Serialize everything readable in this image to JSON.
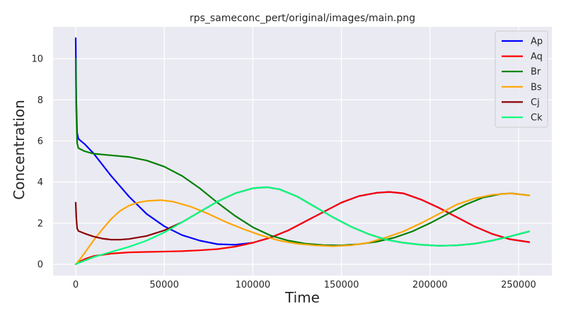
{
  "chart_data": {
    "type": "line",
    "title": "rps_sameconc_pert/original/images/main.png",
    "xlabel": "Time",
    "ylabel": "Concentration",
    "xlim": [
      -12800,
      268800
    ],
    "ylim": [
      -0.55,
      11.55
    ],
    "xticks": [
      0,
      50000,
      100000,
      150000,
      200000,
      250000
    ],
    "xtick_labels": [
      "0",
      "50000",
      "100000",
      "150000",
      "200000",
      "250000"
    ],
    "yticks": [
      0,
      2,
      4,
      6,
      8,
      10
    ],
    "ytick_labels": [
      "0",
      "2",
      "4",
      "6",
      "8",
      "10"
    ],
    "grid": true,
    "legend_position": "top-right",
    "series": [
      {
        "name": "Ap",
        "color": "#0000ff",
        "points": [
          [
            0,
            11.0
          ],
          [
            300,
            8.0
          ],
          [
            800,
            6.4
          ],
          [
            1500,
            6.1
          ],
          [
            5000,
            5.85
          ],
          [
            10000,
            5.4
          ],
          [
            20000,
            4.3
          ],
          [
            30000,
            3.3
          ],
          [
            40000,
            2.45
          ],
          [
            50000,
            1.85
          ],
          [
            60000,
            1.42
          ],
          [
            70000,
            1.15
          ],
          [
            80000,
            0.98
          ],
          [
            90000,
            0.95
          ],
          [
            100000,
            1.05
          ],
          [
            110000,
            1.3
          ],
          [
            120000,
            1.65
          ],
          [
            130000,
            2.1
          ],
          [
            140000,
            2.55
          ],
          [
            150000,
            3.0
          ],
          [
            160000,
            3.32
          ],
          [
            170000,
            3.48
          ],
          [
            177000,
            3.52
          ],
          [
            185000,
            3.45
          ],
          [
            195000,
            3.15
          ],
          [
            205000,
            2.75
          ],
          [
            215000,
            2.3
          ],
          [
            225000,
            1.85
          ],
          [
            235000,
            1.48
          ],
          [
            245000,
            1.22
          ],
          [
            256000,
            1.08
          ]
        ]
      },
      {
        "name": "Aq",
        "color": "#ff0000",
        "points": [
          [
            0,
            0.0
          ],
          [
            2000,
            0.12
          ],
          [
            5000,
            0.25
          ],
          [
            10000,
            0.4
          ],
          [
            20000,
            0.52
          ],
          [
            30000,
            0.58
          ],
          [
            40000,
            0.6
          ],
          [
            50000,
            0.62
          ],
          [
            60000,
            0.64
          ],
          [
            70000,
            0.68
          ],
          [
            80000,
            0.74
          ],
          [
            90000,
            0.86
          ],
          [
            100000,
            1.05
          ],
          [
            110000,
            1.3
          ],
          [
            120000,
            1.65
          ],
          [
            130000,
            2.1
          ],
          [
            140000,
            2.55
          ],
          [
            150000,
            3.0
          ],
          [
            160000,
            3.32
          ],
          [
            170000,
            3.48
          ],
          [
            177000,
            3.52
          ],
          [
            185000,
            3.45
          ],
          [
            195000,
            3.15
          ],
          [
            205000,
            2.75
          ],
          [
            215000,
            2.3
          ],
          [
            225000,
            1.85
          ],
          [
            235000,
            1.48
          ],
          [
            245000,
            1.22
          ],
          [
            256000,
            1.08
          ]
        ]
      },
      {
        "name": "Br",
        "color": "#008000",
        "points": [
          [
            0,
            10.0
          ],
          [
            300,
            7.5
          ],
          [
            800,
            5.9
          ],
          [
            1500,
            5.65
          ],
          [
            5000,
            5.5
          ],
          [
            10000,
            5.38
          ],
          [
            20000,
            5.3
          ],
          [
            30000,
            5.22
          ],
          [
            40000,
            5.05
          ],
          [
            50000,
            4.75
          ],
          [
            60000,
            4.3
          ],
          [
            70000,
            3.7
          ],
          [
            80000,
            3.0
          ],
          [
            90000,
            2.35
          ],
          [
            100000,
            1.8
          ],
          [
            110000,
            1.4
          ],
          [
            120000,
            1.15
          ],
          [
            130000,
            1.0
          ],
          [
            140000,
            0.93
          ],
          [
            150000,
            0.92
          ],
          [
            160000,
            0.98
          ],
          [
            170000,
            1.1
          ],
          [
            180000,
            1.3
          ],
          [
            190000,
            1.6
          ],
          [
            200000,
            2.0
          ],
          [
            210000,
            2.45
          ],
          [
            220000,
            2.9
          ],
          [
            230000,
            3.25
          ],
          [
            240000,
            3.42
          ],
          [
            246000,
            3.45
          ],
          [
            256000,
            3.35
          ]
        ]
      },
      {
        "name": "Bs",
        "color": "#ffa500",
        "points": [
          [
            0,
            0.0
          ],
          [
            2000,
            0.2
          ],
          [
            5000,
            0.55
          ],
          [
            10000,
            1.15
          ],
          [
            15000,
            1.7
          ],
          [
            20000,
            2.2
          ],
          [
            25000,
            2.6
          ],
          [
            30000,
            2.85
          ],
          [
            35000,
            3.0
          ],
          [
            40000,
            3.08
          ],
          [
            48000,
            3.12
          ],
          [
            55000,
            3.05
          ],
          [
            65000,
            2.8
          ],
          [
            75000,
            2.45
          ],
          [
            85000,
            2.05
          ],
          [
            95000,
            1.7
          ],
          [
            105000,
            1.4
          ],
          [
            115000,
            1.15
          ],
          [
            125000,
            1.0
          ],
          [
            135000,
            0.92
          ],
          [
            145000,
            0.88
          ],
          [
            155000,
            0.92
          ],
          [
            165000,
            1.05
          ],
          [
            175000,
            1.3
          ],
          [
            185000,
            1.6
          ],
          [
            195000,
            2.0
          ],
          [
            205000,
            2.45
          ],
          [
            215000,
            2.9
          ],
          [
            225000,
            3.2
          ],
          [
            235000,
            3.38
          ],
          [
            245000,
            3.45
          ],
          [
            256000,
            3.35
          ]
        ]
      },
      {
        "name": "Cj",
        "color": "#8b0000",
        "points": [
          [
            0,
            3.0
          ],
          [
            300,
            2.3
          ],
          [
            800,
            1.75
          ],
          [
            1500,
            1.62
          ],
          [
            5000,
            1.5
          ],
          [
            10000,
            1.35
          ],
          [
            15000,
            1.25
          ],
          [
            20000,
            1.2
          ],
          [
            25000,
            1.2
          ],
          [
            30000,
            1.23
          ],
          [
            40000,
            1.38
          ],
          [
            50000,
            1.65
          ],
          [
            60000,
            2.05
          ],
          [
            70000,
            2.55
          ],
          [
            80000,
            3.05
          ],
          [
            90000,
            3.45
          ],
          [
            100000,
            3.7
          ],
          [
            108000,
            3.75
          ],
          [
            115000,
            3.65
          ],
          [
            125000,
            3.3
          ],
          [
            135000,
            2.8
          ],
          [
            145000,
            2.3
          ],
          [
            155000,
            1.85
          ],
          [
            165000,
            1.48
          ],
          [
            175000,
            1.2
          ],
          [
            185000,
            1.05
          ],
          [
            195000,
            0.95
          ],
          [
            205000,
            0.9
          ],
          [
            215000,
            0.92
          ],
          [
            225000,
            1.0
          ],
          [
            235000,
            1.15
          ],
          [
            245000,
            1.35
          ],
          [
            256000,
            1.6
          ]
        ]
      },
      {
        "name": "Ck",
        "color": "#00ff7f",
        "points": [
          [
            0,
            0.0
          ],
          [
            2000,
            0.08
          ],
          [
            5000,
            0.18
          ],
          [
            10000,
            0.35
          ],
          [
            20000,
            0.6
          ],
          [
            30000,
            0.85
          ],
          [
            40000,
            1.15
          ],
          [
            50000,
            1.55
          ],
          [
            60000,
            2.05
          ],
          [
            70000,
            2.55
          ],
          [
            80000,
            3.05
          ],
          [
            90000,
            3.45
          ],
          [
            100000,
            3.7
          ],
          [
            108000,
            3.75
          ],
          [
            115000,
            3.65
          ],
          [
            125000,
            3.3
          ],
          [
            135000,
            2.8
          ],
          [
            145000,
            2.3
          ],
          [
            155000,
            1.85
          ],
          [
            165000,
            1.48
          ],
          [
            175000,
            1.2
          ],
          [
            185000,
            1.05
          ],
          [
            195000,
            0.95
          ],
          [
            205000,
            0.9
          ],
          [
            215000,
            0.92
          ],
          [
            225000,
            1.0
          ],
          [
            235000,
            1.15
          ],
          [
            245000,
            1.35
          ],
          [
            256000,
            1.6
          ]
        ]
      }
    ]
  }
}
